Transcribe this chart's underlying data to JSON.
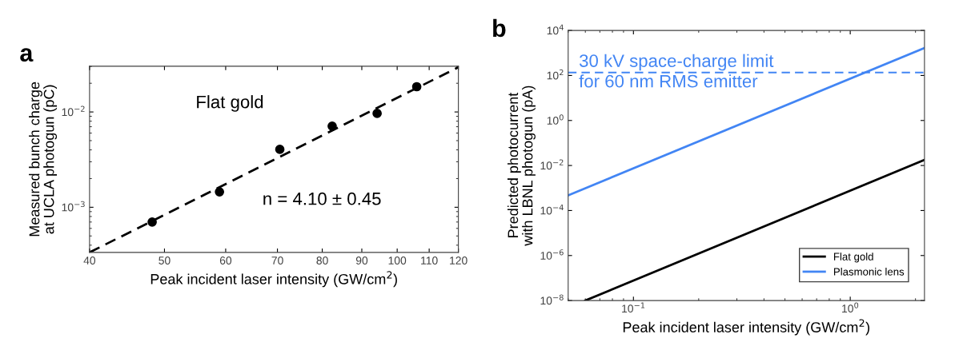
{
  "chart_data": [
    {
      "type": "scatter",
      "xlabel": "Peak incident laser intensity (GW/cm$^{2}$)",
      "ylabel": "Measured bunch charge\nat UCLA photogun (pC)",
      "log": "xy",
      "marker": "circle",
      "legend": false,
      "grid": false,
      "annotations": [
        "a",
        "Flat gold",
        "n = 4.10 ± 0.45"
      ],
      "xlim": [
        40,
        120
      ],
      "xticks": [
        40,
        50,
        60,
        70,
        80,
        90,
        100,
        110,
        120
      ],
      "ylim": [
        0.000336,
        0.0302
      ],
      "yticks": [
        {
          "value": 0.001,
          "label": "10$^{−3}$"
        },
        {
          "value": 0.01,
          "label": "10$^{−2}$"
        }
      ],
      "series": [
        {
          "type": "scatter",
          "color": "#000000",
          "x": [
            48.2,
            58.9,
            70.5,
            82.4,
            94.2,
            106
          ],
          "values": [
            0.0007,
            0.00145,
            0.00405,
            0.0071,
            0.00965,
            0.0184
          ]
        },
        {
          "type": "line",
          "line_style": "dashed",
          "marker": "none",
          "color": "#000000",
          "x": [
            40,
            120
          ],
          "values": [
            0.000336,
            0.0295
          ]
        }
      ]
    },
    {
      "type": "line",
      "xlabel": "Peak incident laser intensity (GW/cm$^{2}$)",
      "ylabel": "Predicted photocurrent\nwith LBNL photogun (pA)",
      "log": "xy",
      "marker": "none",
      "legend": "bottom right",
      "grid": false,
      "annotations": [
        "b"
      ],
      "xlim": [
        0.05,
        2.2
      ],
      "xticks": [
        {
          "value": 0.1,
          "label": "10$^{−1}$"
        },
        {
          "value": 1,
          "label": "10$^{0}$"
        }
      ],
      "ylim": [
        1e-08,
        10000
      ],
      "yticks": [
        {
          "value": 1e-08,
          "label": "10$^{−8}$"
        },
        {
          "value": 1e-06,
          "label": "10$^{−6}$"
        },
        {
          "value": 0.0001,
          "label": "10$^{−4}$"
        },
        {
          "value": 0.01,
          "label": "10$^{−2}$"
        },
        {
          "value": 1,
          "label": "10$^{0}$"
        },
        {
          "value": 100,
          "label": "10$^{2}$"
        },
        {
          "value": 10000,
          "label": "10$^{4}$"
        }
      ],
      "ref_lines": [
        {
          "axis": "y",
          "value": 135,
          "label": "30 kV space-charge limit\nfor 60 nm RMS emitter",
          "color": "#4285f4",
          "line_style": "dashed"
        }
      ],
      "series": [
        {
          "name": "Flat gold",
          "color": "#000000",
          "x": [
            0.06,
            2.2
          ],
          "values": [
            1e-08,
            0.0178
          ]
        },
        {
          "name": "Plasmonic lens",
          "color": "#4285f4",
          "x": [
            0.05,
            2.2
          ],
          "values": [
            0.00047,
            1670
          ]
        }
      ]
    }
  ]
}
